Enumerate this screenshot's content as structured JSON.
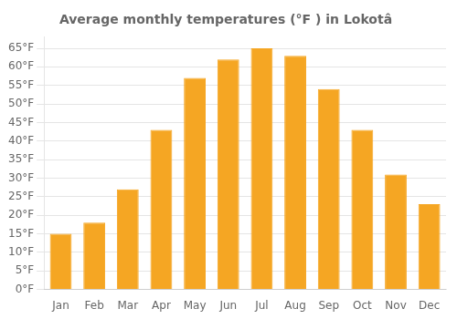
{
  "chart_data": {
    "type": "bar",
    "title": "Average monthly temperatures (°F ) in Lokotâ",
    "categories": [
      "Jan",
      "Feb",
      "Mar",
      "Apr",
      "May",
      "Jun",
      "Jul",
      "Aug",
      "Sep",
      "Oct",
      "Nov",
      "Dec"
    ],
    "values": [
      15,
      18,
      27,
      43,
      57,
      62,
      65,
      63,
      54,
      43,
      31,
      23
    ],
    "color": "#F5A623",
    "ylim": [
      0,
      68
    ],
    "yticks": [
      {
        "value": 0,
        "label": "0°F"
      },
      {
        "value": 5,
        "label": "5°F"
      },
      {
        "value": 10,
        "label": "10°F"
      },
      {
        "value": 15,
        "label": "15°F"
      },
      {
        "value": 20,
        "label": "20°F"
      },
      {
        "value": 25,
        "label": "25°F"
      },
      {
        "value": 30,
        "label": "30°F"
      },
      {
        "value": 35,
        "label": "35°F"
      },
      {
        "value": 40,
        "label": "40°F"
      },
      {
        "value": 45,
        "label": "45°F"
      },
      {
        "value": 50,
        "label": "50°F"
      },
      {
        "value": 55,
        "label": "55°F"
      },
      {
        "value": 60,
        "label": "60°F"
      },
      {
        "value": 65,
        "label": "65°F"
      }
    ],
    "grid": true
  }
}
